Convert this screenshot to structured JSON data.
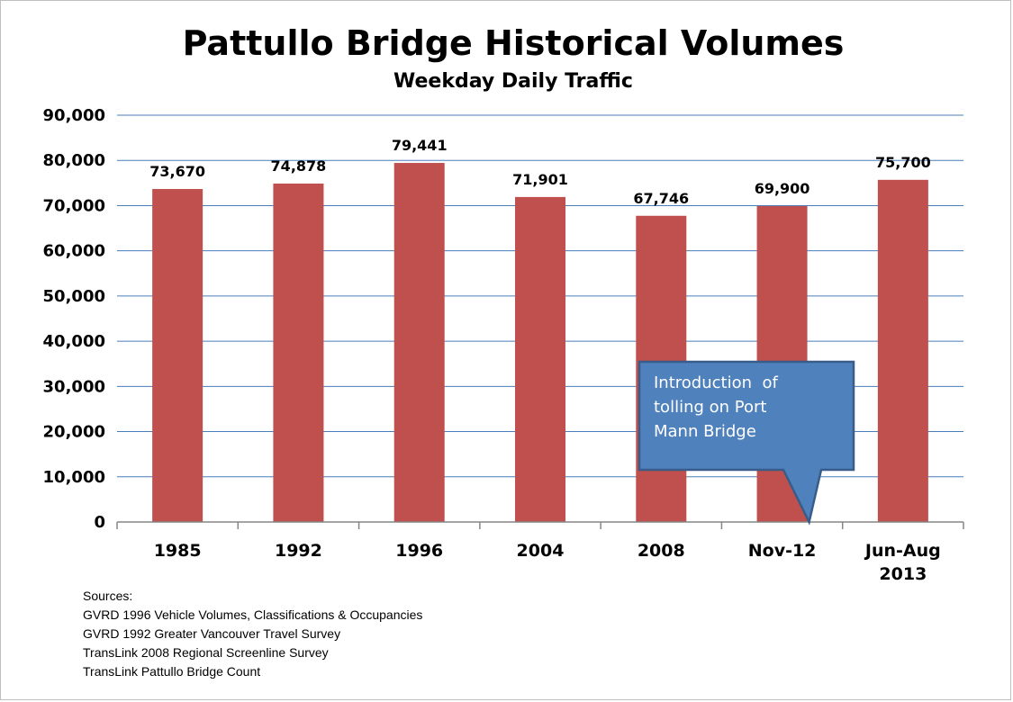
{
  "chart_data": {
    "type": "bar",
    "title": "Pattullo Bridge Historical Volumes",
    "subtitle": "Weekday Daily Traffic",
    "categories": [
      [
        "1985"
      ],
      [
        "1992"
      ],
      [
        "1996"
      ],
      [
        "2004"
      ],
      [
        "2008"
      ],
      [
        "Nov-12"
      ],
      [
        "Jun-Aug",
        "2013"
      ]
    ],
    "values": [
      73670,
      74878,
      79441,
      71901,
      67746,
      69900,
      75700
    ],
    "value_labels": [
      "73,670",
      "74,878",
      "79,441",
      "71,901",
      "67,746",
      "69,900",
      "75,700"
    ],
    "ylim": [
      0,
      90000
    ],
    "yticks": [
      0,
      10000,
      20000,
      30000,
      40000,
      50000,
      60000,
      70000,
      80000,
      90000
    ],
    "ytick_labels": [
      "0",
      "10,000",
      "20,000",
      "30,000",
      "40,000",
      "50,000",
      "60,000",
      "70,000",
      "80,000",
      "90,000"
    ],
    "grid": true,
    "legend": "none",
    "bar_color": "#c0504d",
    "annotation": {
      "lines": [
        "Introduction  of",
        "tolling on Port",
        "Mann Bridge"
      ],
      "points_to": "Nov-12",
      "fill": "#4f81bd",
      "border": "#385d8a"
    }
  },
  "sources": {
    "heading": "Sources:",
    "items": [
      "GVRD 1996 Vehicle Volumes, Classifications & Occupancies",
      "GVRD 1992 Greater Vancouver Travel Survey",
      "TransLink 2008 Regional Screenline Survey",
      "TransLink Pattullo Bridge Count"
    ]
  },
  "colors": {
    "gridline": "#4a7ebb",
    "axis": "#868686"
  }
}
